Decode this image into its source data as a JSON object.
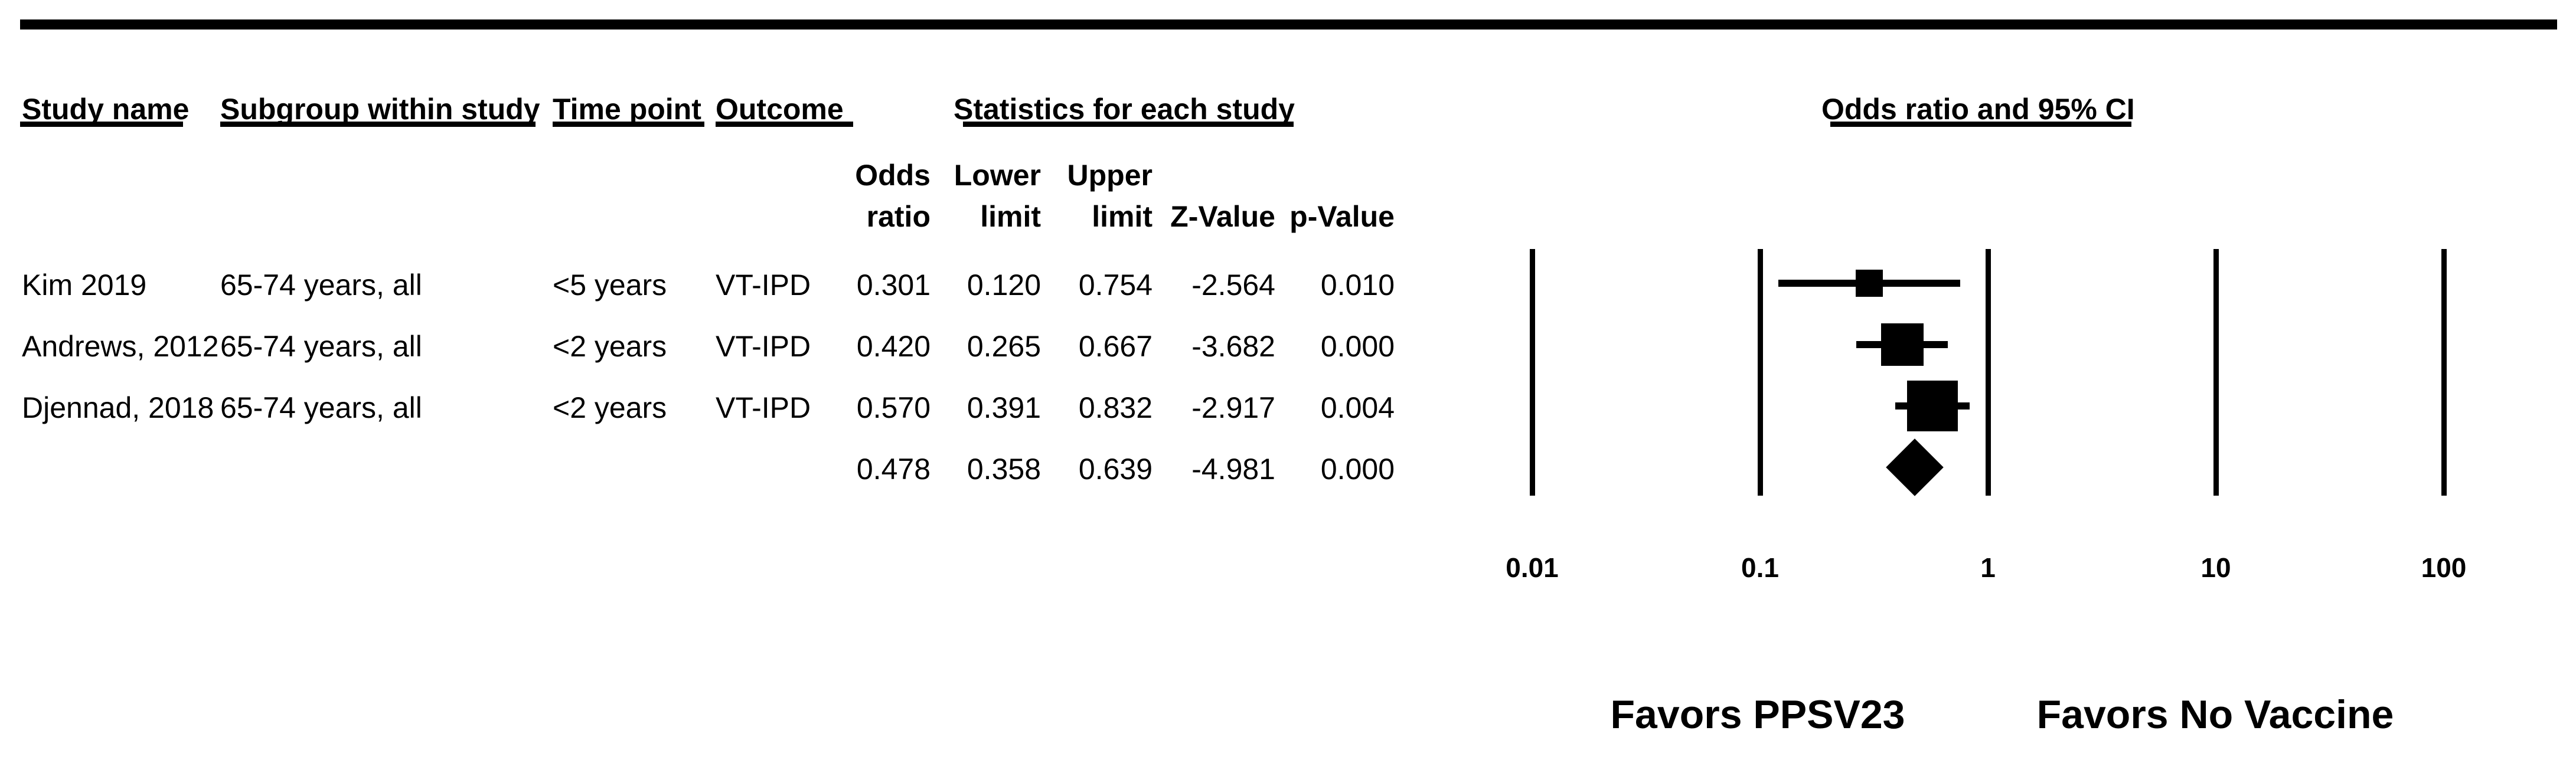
{
  "header": {
    "study": "Study name",
    "subgroup": "Subgroup within study",
    "time_point": "Time point",
    "outcome": "Outcome",
    "statistics": "Statistics for each study",
    "plot": "Odds ratio and 95% CI"
  },
  "stat_headers": {
    "odds_line1": "Odds",
    "odds_line2": "ratio",
    "lower_line1": "Lower",
    "lower_line2": "limit",
    "upper_line1": "Upper",
    "upper_line2": "limit",
    "z_line2": "Z-Value",
    "p_line2": "p-Value"
  },
  "rows": [
    {
      "study": "Kim 2019",
      "subgroup": "65-74 years, all",
      "time_point": "<5 years",
      "outcome": "VT-IPD",
      "odds_ratio": "0.301",
      "lower_limit": "0.120",
      "upper_limit": "0.754",
      "z_value": "-2.564",
      "p_value": "0.010"
    },
    {
      "study": "Andrews, 2012",
      "subgroup": "65-74 years, all",
      "time_point": "<2 years",
      "outcome": "VT-IPD",
      "odds_ratio": "0.420",
      "lower_limit": "0.265",
      "upper_limit": "0.667",
      "z_value": "-3.682",
      "p_value": "0.000"
    },
    {
      "study": "Djennad, 2018",
      "subgroup": "65-74 years, all",
      "time_point": "<2 years",
      "outcome": "VT-IPD",
      "odds_ratio": "0.570",
      "lower_limit": "0.391",
      "upper_limit": "0.832",
      "z_value": "-2.917",
      "p_value": "0.004"
    }
  ],
  "summary": {
    "odds_ratio": "0.478",
    "lower_limit": "0.358",
    "upper_limit": "0.639",
    "z_value": "-4.981",
    "p_value": "0.000"
  },
  "axis": {
    "tick_labels": [
      "0.01",
      "0.1",
      "1",
      "10",
      "100"
    ],
    "tick_values": [
      0.01,
      0.1,
      1,
      10,
      100
    ]
  },
  "footer": {
    "favors_left": "Favors PPSV23",
    "favors_right": "Favors No Vaccine"
  },
  "chart_data": {
    "type": "scatter",
    "subtype": "forest-plot",
    "title": "Odds ratio and 95% CI",
    "x_scale": "log10",
    "x_ticks": [
      0.01,
      0.1,
      1,
      10,
      100
    ],
    "xlim": [
      0.01,
      100
    ],
    "grid": "vertical-reference-lines",
    "studies": [
      {
        "name": "Kim 2019",
        "subgroup": "65-74 years, all",
        "time_point": "<5 years",
        "outcome": "VT-IPD",
        "or": 0.301,
        "ci_lower": 0.12,
        "ci_upper": 0.754,
        "z": -2.564,
        "p": 0.01
      },
      {
        "name": "Andrews, 2012",
        "subgroup": "65-74 years, all",
        "time_point": "<2 years",
        "outcome": "VT-IPD",
        "or": 0.42,
        "ci_lower": 0.265,
        "ci_upper": 0.667,
        "z": -3.682,
        "p": 0.0
      },
      {
        "name": "Djennad, 2018",
        "subgroup": "65-74 years, all",
        "time_point": "<2 years",
        "outcome": "VT-IPD",
        "or": 0.57,
        "ci_lower": 0.391,
        "ci_upper": 0.832,
        "z": -2.917,
        "p": 0.004
      }
    ],
    "summary": {
      "or": 0.478,
      "ci_lower": 0.358,
      "ci_upper": 0.639,
      "z": -4.981,
      "p": 0.0,
      "marker": "diamond"
    },
    "annotations": [
      "Favors PPSV23",
      "Favors No Vaccine"
    ]
  }
}
